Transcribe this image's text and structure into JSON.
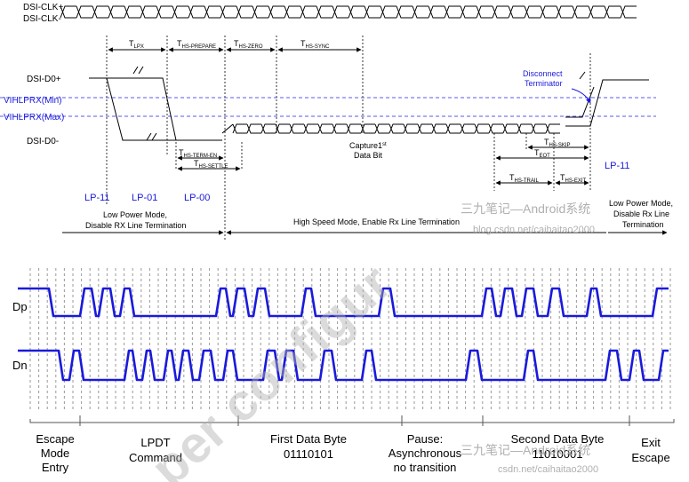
{
  "top": {
    "signals": {
      "clk_p": "DSI-CLK+",
      "clk_n": "DSI-CLK-",
      "d0_p": "DSI-D0+",
      "d0_n": "DSI-D0-",
      "vih_min": "VIHLPRX(Min)",
      "vih_max": "VIHLPRX(Max)"
    },
    "timings": {
      "t_lpx": "T",
      "t_lpx_sub": "LPX",
      "t_hs_prepare": "T",
      "t_hs_prepare_sub": "HS-PREPARE",
      "t_hs_zero": "T",
      "t_hs_zero_sub": "HS-ZERO",
      "t_hs_sync": "T",
      "t_hs_sync_sub": "HS-SYNC",
      "t_hs_term_en": "T",
      "t_hs_term_en_sub": "HS-TERM-EN",
      "t_hs_settle": "T",
      "t_hs_settle_sub": "HS-SETTLE",
      "t_hs_skip": "T",
      "t_hs_skip_sub": "HS-SKIP",
      "t_eot": "T",
      "t_eot_sub": "EOT",
      "t_hs_trail": "T",
      "t_hs_trail_sub": "HS-TRAIL",
      "t_hs_exit": "T",
      "t_hs_exit_sub": "HS-EXIT"
    },
    "annotations": {
      "disconnect_1": "Disconnect",
      "disconnect_2": "Terminator",
      "capture_1": "Capture1",
      "capture_sup": "st",
      "capture_2": "Data Bit"
    },
    "states": {
      "lp11_a": "LP-11",
      "lp01": "LP-01",
      "lp00": "LP-00",
      "lp11_b": "LP-11"
    },
    "modes": {
      "lp_mode_1": "Low Power Mode,",
      "lp_mode_2": "Disable RX Line Termination",
      "hs_mode": "High Speed Mode, Enable Rx Line Termination",
      "lp_mode_end_1": "Low Power Mode,",
      "lp_mode_end_2": "Disable Rx Line",
      "lp_mode_end_3": "Termination"
    }
  },
  "bottom": {
    "signals": {
      "dp": "Dp",
      "dn": "Dn"
    },
    "segments": [
      {
        "lines": [
          "Escape",
          "Mode",
          "Entry"
        ]
      },
      {
        "lines": [
          "LPDT",
          "Command"
        ]
      },
      {
        "lines": [
          "First Data Byte",
          "01110101"
        ]
      },
      {
        "lines": [
          "Pause:",
          "Asynchronous",
          "no transition"
        ]
      },
      {
        "lines": [
          "Second Data Byte",
          "11010001"
        ]
      },
      {
        "lines": [
          "Exit",
          "Escape"
        ]
      }
    ]
  },
  "watermarks": {
    "wechat_1": "三九笔记—Android系统",
    "url_1": "blog.csdn.net/caihaitao2000",
    "wechat_2": "三九笔记—Android系统",
    "url_2": "csdn.net/caihaitao2000",
    "diagonal": "per configur"
  },
  "colors": {
    "line_blue": "#1a1adc",
    "threshold_blue": "#5a5aee",
    "watermark": "#b0b0b0"
  }
}
